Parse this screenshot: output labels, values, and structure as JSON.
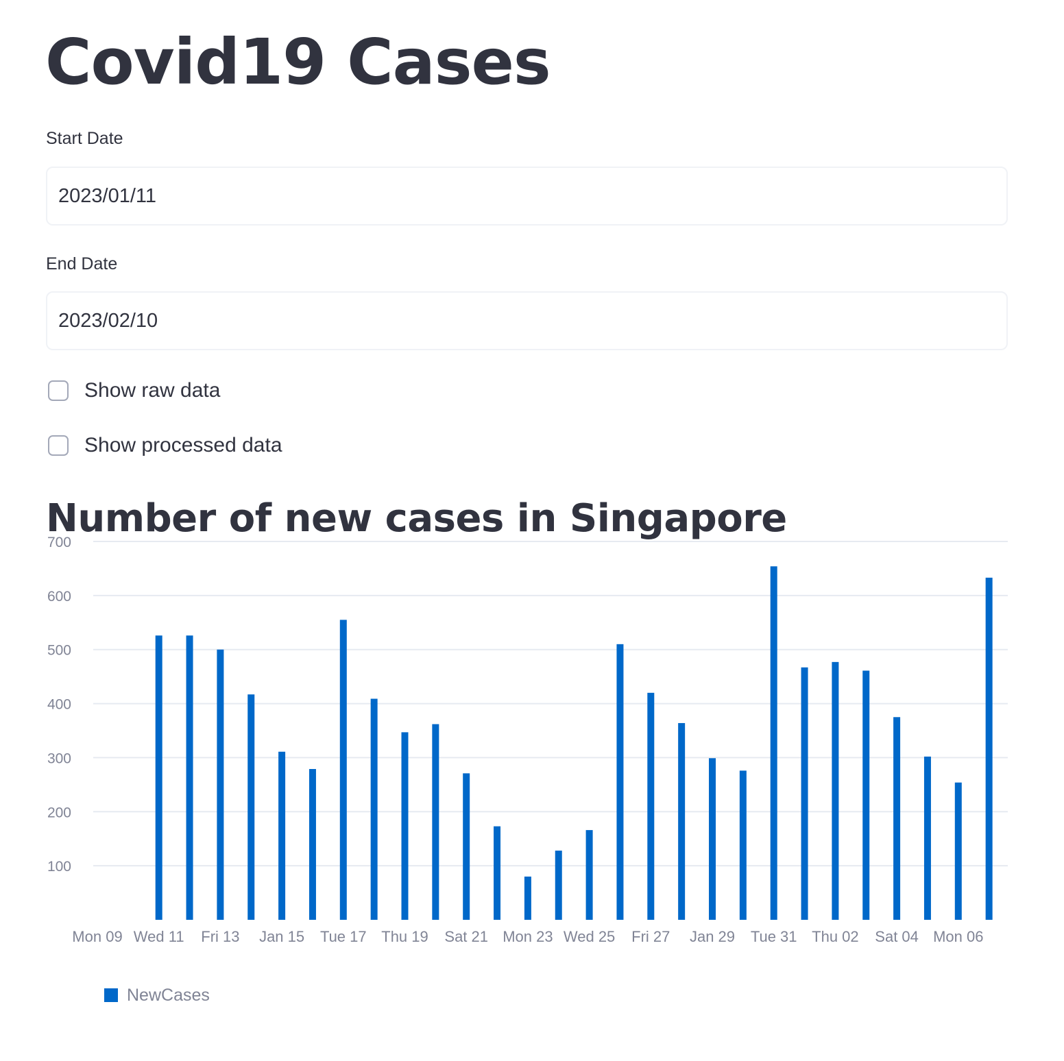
{
  "title": "Covid19 Cases",
  "start_date": {
    "label": "Start Date",
    "value": "2023/01/11"
  },
  "end_date": {
    "label": "End Date",
    "value": "2023/02/10"
  },
  "checkboxes": [
    {
      "label": "Show raw data",
      "checked": false
    },
    {
      "label": "Show processed data",
      "checked": false
    }
  ],
  "chart_title": "Number of new cases in Singapore",
  "colors": {
    "bar": "#0068c9",
    "grid": "#e6eaf1",
    "axis_text": "#808495"
  },
  "chart_data": {
    "type": "bar",
    "title": "Number of new cases in Singapore",
    "xlabel": "",
    "ylabel": "",
    "ylim": [
      0,
      700
    ],
    "yticks": [
      100,
      200,
      300,
      400,
      500,
      600,
      700
    ],
    "x_start": "2023-01-09",
    "x_tick_labels": [
      "Mon 09",
      "Wed 11",
      "Fri 13",
      "Jan 15",
      "Tue 17",
      "Thu 19",
      "Sat 21",
      "Mon 23",
      "Wed 25",
      "Fri 27",
      "Jan 29",
      "Tue 31",
      "Thu 02",
      "Sat 04",
      "Mon 06"
    ],
    "grid": true,
    "legend_position": "bottom-left",
    "series": [
      {
        "name": "NewCases",
        "x": [
          "2023-01-11",
          "2023-01-12",
          "2023-01-13",
          "2023-01-14",
          "2023-01-15",
          "2023-01-16",
          "2023-01-17",
          "2023-01-18",
          "2023-01-19",
          "2023-01-20",
          "2023-01-21",
          "2023-01-22",
          "2023-01-23",
          "2023-01-24",
          "2023-01-25",
          "2023-01-26",
          "2023-01-27",
          "2023-01-28",
          "2023-01-29",
          "2023-01-30",
          "2023-01-31",
          "2023-02-01",
          "2023-02-02",
          "2023-02-03",
          "2023-02-04",
          "2023-02-05",
          "2023-02-06",
          "2023-02-07"
        ],
        "values": [
          526,
          526,
          500,
          417,
          311,
          279,
          555,
          409,
          347,
          362,
          271,
          173,
          80,
          128,
          166,
          510,
          420,
          364,
          299,
          276,
          654,
          467,
          477,
          461,
          375,
          302,
          254,
          633
        ]
      }
    ]
  }
}
